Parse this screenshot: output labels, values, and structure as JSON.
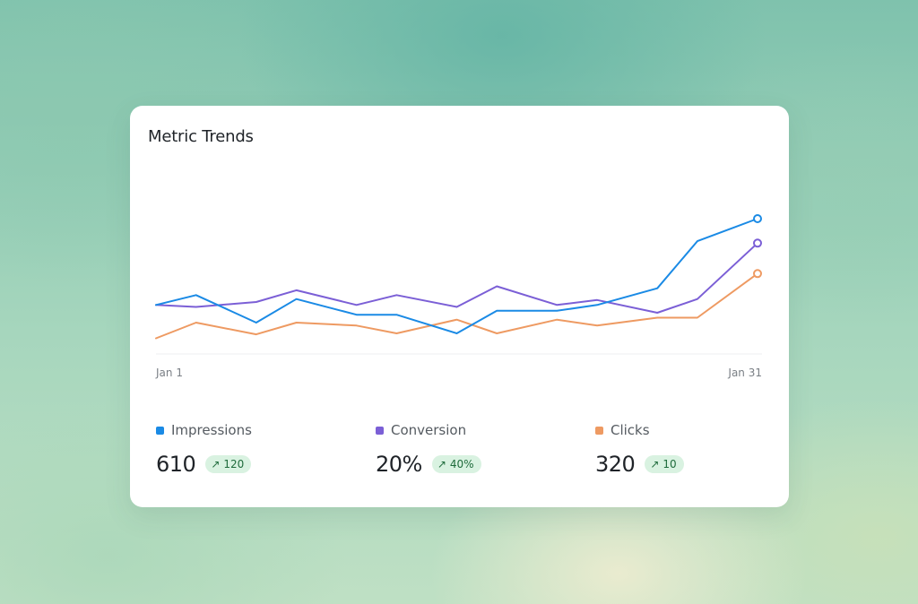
{
  "card": {
    "title": "Metric Trends"
  },
  "chart_data": {
    "type": "line",
    "title": "Metric Trends",
    "x_start_label": "Jan 1",
    "x_end_label": "Jan 31",
    "tick_labels": [
      "Jan 1",
      "Jan 31"
    ],
    "ylim": [
      0,
      180
    ],
    "grid": false,
    "legend_placement": "bottom",
    "x": [
      1,
      3,
      6,
      8,
      11,
      13,
      16,
      18,
      21,
      23,
      26,
      28,
      31
    ],
    "series": [
      {
        "name": "Impressions",
        "color": "#1a8ae5",
        "values": [
          50,
          60,
          32,
          56,
          40,
          40,
          21,
          44,
          44,
          50,
          67,
          115,
          138
        ]
      },
      {
        "name": "Conversion",
        "color": "#7b5fd6",
        "values": [
          50,
          48,
          53,
          65,
          50,
          60,
          48,
          69,
          50,
          55,
          42,
          56,
          113
        ]
      },
      {
        "name": "Clicks",
        "color": "#ee9a62",
        "values": [
          16,
          32,
          20,
          32,
          29,
          21,
          35,
          21,
          35,
          29,
          37,
          37,
          82
        ]
      }
    ]
  },
  "metrics": [
    {
      "label": "Impressions",
      "color": "#1a8ae5",
      "value": "610",
      "change": "120",
      "change_icon": "arrow-up-right-icon"
    },
    {
      "label": "Conversion",
      "color": "#7b5fd6",
      "value": "20%",
      "change": "40%",
      "change_icon": "arrow-up-right-icon"
    },
    {
      "label": "Clicks",
      "color": "#ee9a62",
      "value": "320",
      "change": "10",
      "change_icon": "arrow-up-right-icon"
    }
  ]
}
